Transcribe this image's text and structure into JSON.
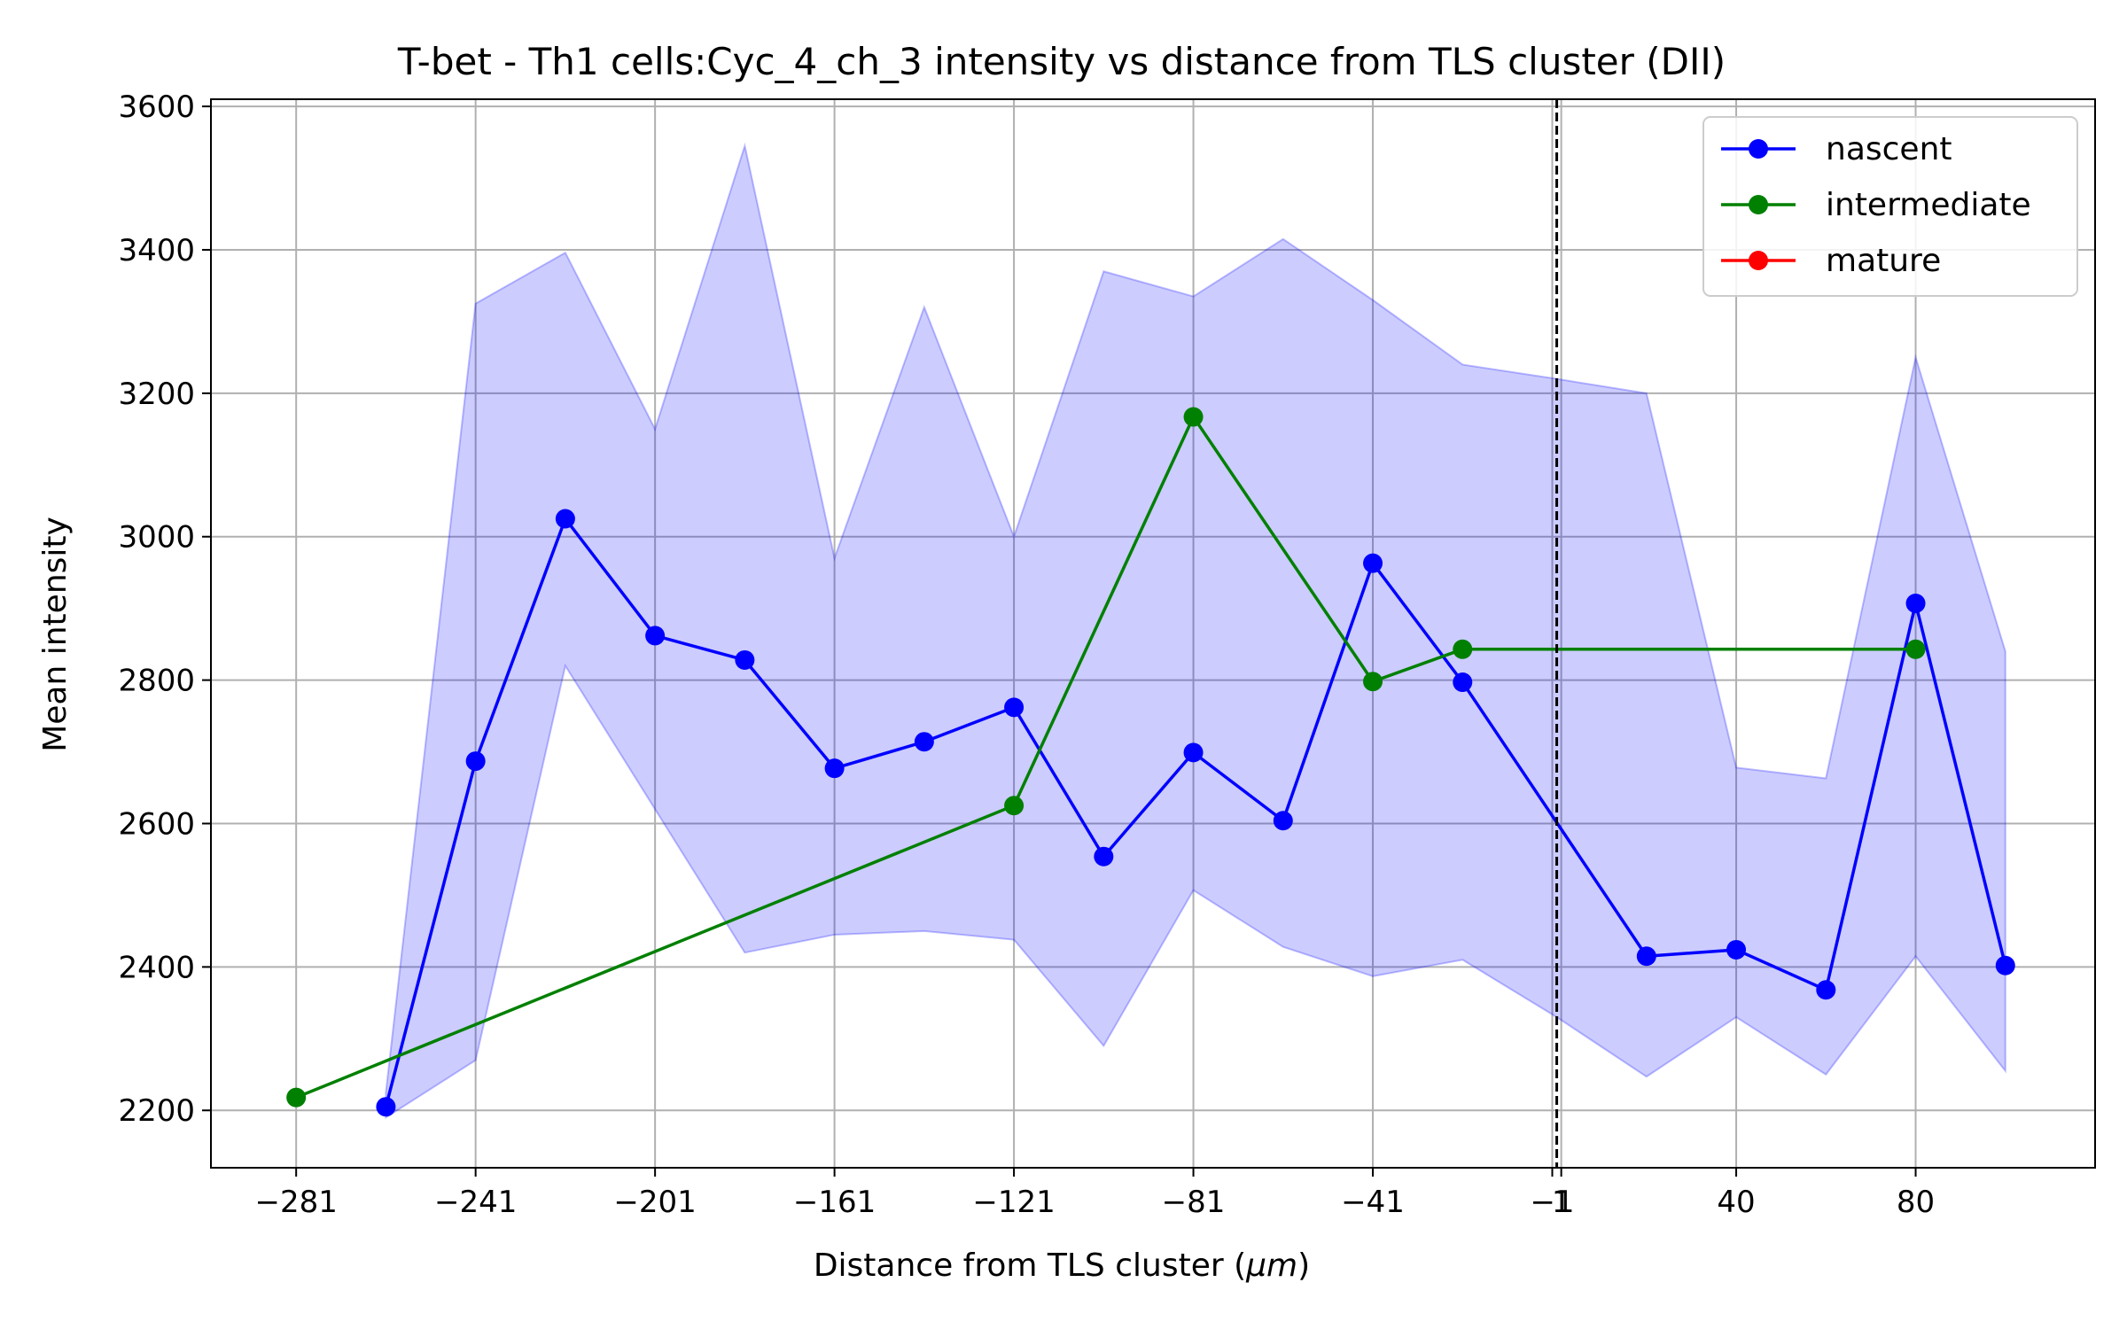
{
  "chart_data": {
    "type": "line",
    "title": "T-bet - Th1 cells:Cyc_4_ch_3 intensity vs distance from TLS cluster (DII)",
    "xlabel": "Distance from TLS cluster (",
    "xlabel_unit": "μm",
    "xlabel_close": ")",
    "ylabel": "Mean intensity",
    "xlim": [
      -300,
      120
    ],
    "ylim": [
      2120,
      3610
    ],
    "x_ticks": [
      -281,
      -241,
      -201,
      -161,
      -121,
      -81,
      -41,
      -1,
      1,
      40,
      80
    ],
    "x_tick_labels": [
      "−281",
      "−241",
      "−201",
      "−161",
      "−121",
      "−81",
      "−41",
      "−1",
      "1",
      "40",
      "80"
    ],
    "y_ticks": [
      2200,
      2400,
      2600,
      2800,
      3000,
      3200,
      3400,
      3600
    ],
    "y_tick_labels": [
      "2200",
      "2400",
      "2600",
      "2800",
      "3000",
      "3200",
      "3400",
      "3600"
    ],
    "grid": true,
    "legend_position": "top-right",
    "vline_x": 0,
    "series": [
      {
        "name": "nascent",
        "color": "#0000ff",
        "x": [
          -261,
          -241,
          -221,
          -201,
          -181,
          -161,
          -141,
          -121,
          -101,
          -81,
          -61,
          -41,
          -21,
          20,
          40,
          60,
          80,
          100
        ],
        "y": [
          2205,
          2687,
          3025,
          2862,
          2828,
          2677,
          2714,
          2762,
          2554,
          2699,
          2604,
          2963,
          2797,
          2415,
          2424,
          2368,
          2907,
          2402
        ],
        "band_upper": [
          2225,
          3325,
          3396,
          3150,
          3545,
          2970,
          3320,
          3000,
          3370,
          3335,
          3415,
          3330,
          3240,
          3200,
          2678,
          2663,
          3250,
          2840
        ],
        "band_lower": [
          2190,
          2270,
          2820,
          2620,
          2420,
          2445,
          2450,
          2438,
          2290,
          2507,
          2428,
          2387,
          2410,
          2247,
          2330,
          2250,
          2415,
          2255
        ],
        "band_extra_x": [
          0
        ],
        "band_extra_upper": [
          3220
        ],
        "band_extra_lower": [
          2330
        ]
      },
      {
        "name": "intermediate",
        "color": "#008000",
        "x": [
          -281,
          -121,
          -81,
          -41,
          -21,
          80
        ],
        "y": [
          2218,
          2625,
          3167,
          2798,
          2843,
          2843
        ]
      },
      {
        "name": "mature",
        "color": "#ff0000",
        "x": [],
        "y": []
      }
    ],
    "band_color": "#0000ff"
  }
}
